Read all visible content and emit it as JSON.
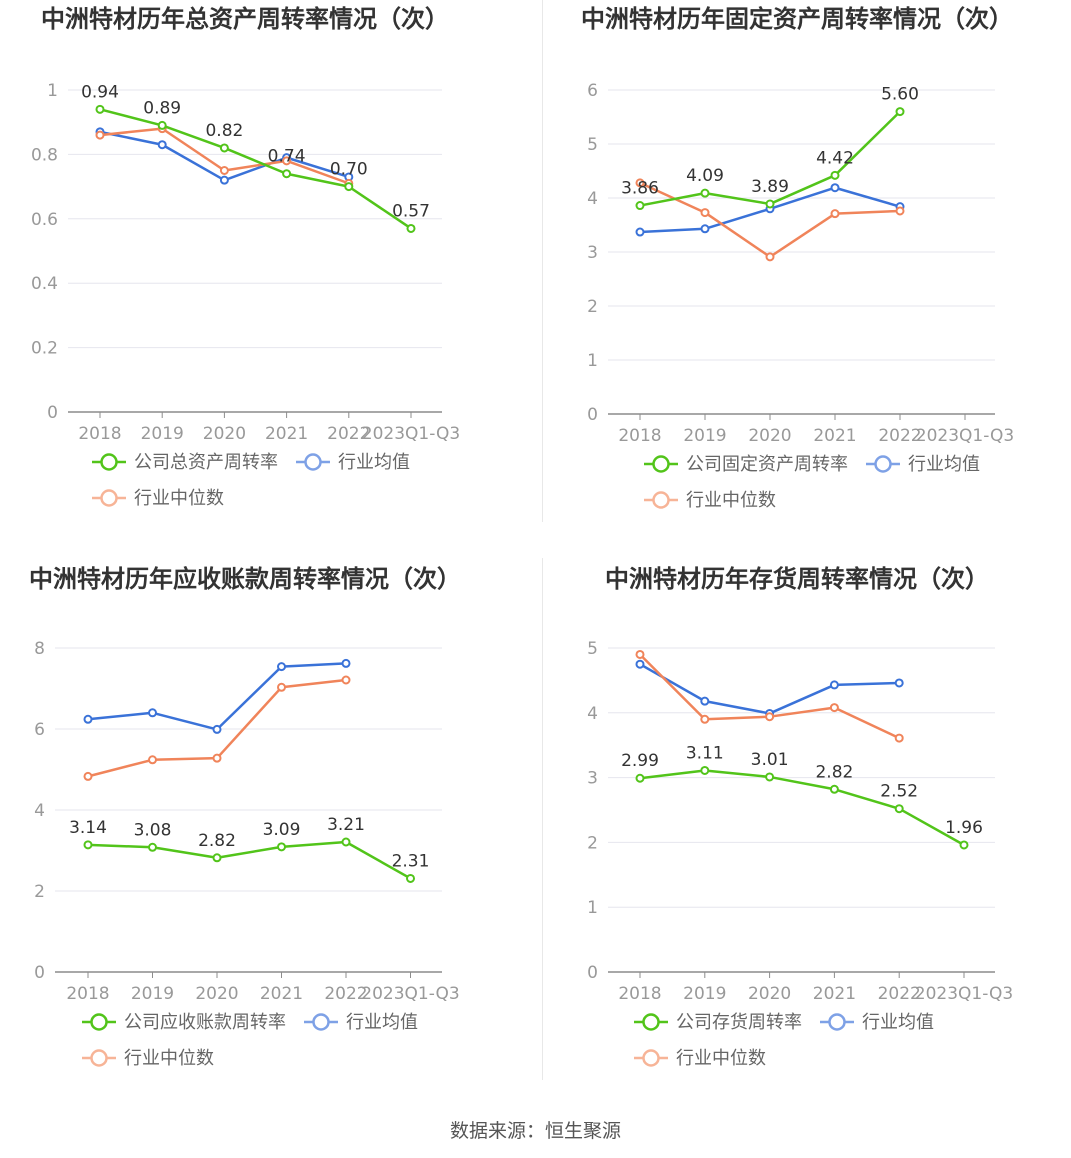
{
  "source_text": "数据来源：恒生聚源",
  "colors": {
    "company": "#52c41a",
    "avg": "#3a72d8",
    "median": "#f0845a"
  },
  "chart_data": [
    {
      "type": "line",
      "title": "中洲特材历年总资产周转率情况（次）",
      "categories": [
        "2018",
        "2019",
        "2020",
        "2021",
        "2022",
        "2023Q1-Q3"
      ],
      "ylim": [
        0,
        1
      ],
      "yticks": [
        0,
        0.2,
        0.4,
        0.6,
        0.8,
        1
      ],
      "ytick_labels": [
        "0",
        "0.2",
        "0.4",
        "0.6",
        "0.8",
        "1"
      ],
      "series": [
        {
          "name": "公司总资产周转率",
          "key": "company",
          "values": [
            0.94,
            0.89,
            0.82,
            0.74,
            0.7,
            0.57
          ],
          "labels": [
            "0.94",
            "0.89",
            "0.82",
            "0.74",
            "0.70",
            "0.57"
          ]
        },
        {
          "name": "行业均值",
          "key": "avg",
          "values": [
            0.87,
            0.83,
            0.72,
            0.79,
            0.73,
            null
          ]
        },
        {
          "name": "行业中位数",
          "key": "median",
          "values": [
            0.86,
            0.88,
            0.75,
            0.78,
            0.71,
            null
          ]
        }
      ]
    },
    {
      "type": "line",
      "title": "中洲特材历年固定资产周转率情况（次）",
      "categories": [
        "2018",
        "2019",
        "2020",
        "2021",
        "2022",
        "2023Q1-Q3"
      ],
      "ylim": [
        0,
        6
      ],
      "yticks": [
        0,
        1,
        2,
        3,
        4,
        5,
        6
      ],
      "ytick_labels": [
        "0",
        "1",
        "2",
        "3",
        "4",
        "5",
        "6"
      ],
      "series": [
        {
          "name": "公司固定资产周转率",
          "key": "company",
          "values": [
            3.86,
            4.09,
            3.89,
            4.42,
            5.6,
            null
          ],
          "labels": [
            "3.86",
            "4.09",
            "3.89",
            "4.42",
            "5.60",
            null
          ]
        },
        {
          "name": "行业均值",
          "key": "avg",
          "values": [
            3.37,
            3.43,
            3.8,
            4.19,
            3.84,
            null
          ]
        },
        {
          "name": "行业中位数",
          "key": "median",
          "values": [
            4.28,
            3.73,
            2.91,
            3.71,
            3.76,
            null
          ]
        }
      ]
    },
    {
      "type": "line",
      "title": "中洲特材历年应收账款周转率情况（次）",
      "categories": [
        "2018",
        "2019",
        "2020",
        "2021",
        "2022",
        "2023Q1-Q3"
      ],
      "ylim": [
        0,
        8
      ],
      "yticks": [
        0,
        2,
        4,
        6,
        8
      ],
      "ytick_labels": [
        "0",
        "2",
        "4",
        "6",
        "8"
      ],
      "series": [
        {
          "name": "公司应收账款周转率",
          "key": "company",
          "values": [
            3.14,
            3.08,
            2.82,
            3.09,
            3.21,
            2.31
          ],
          "labels": [
            "3.14",
            "3.08",
            "2.82",
            "3.09",
            "3.21",
            "2.31"
          ]
        },
        {
          "name": "行业均值",
          "key": "avg",
          "values": [
            6.24,
            6.4,
            5.99,
            7.54,
            7.62,
            null
          ]
        },
        {
          "name": "行业中位数",
          "key": "median",
          "values": [
            4.83,
            5.24,
            5.28,
            7.03,
            7.21,
            null
          ]
        }
      ]
    },
    {
      "type": "line",
      "title": "中洲特材历年存货周转率情况（次）",
      "categories": [
        "2018",
        "2019",
        "2020",
        "2021",
        "2022",
        "2023Q1-Q3"
      ],
      "ylim": [
        0,
        5
      ],
      "yticks": [
        0,
        1,
        2,
        3,
        4,
        5
      ],
      "ytick_labels": [
        "0",
        "1",
        "2",
        "3",
        "4",
        "5"
      ],
      "series": [
        {
          "name": "公司存货周转率",
          "key": "company",
          "values": [
            2.99,
            3.11,
            3.01,
            2.82,
            2.52,
            1.96
          ],
          "labels": [
            "2.99",
            "3.11",
            "3.01",
            "2.82",
            "2.52",
            "1.96"
          ]
        },
        {
          "name": "行业均值",
          "key": "avg",
          "values": [
            4.75,
            4.18,
            3.99,
            4.43,
            4.46,
            null
          ]
        },
        {
          "name": "行业中位数",
          "key": "median",
          "values": [
            4.9,
            3.9,
            3.94,
            4.08,
            3.61,
            null
          ]
        }
      ]
    }
  ]
}
